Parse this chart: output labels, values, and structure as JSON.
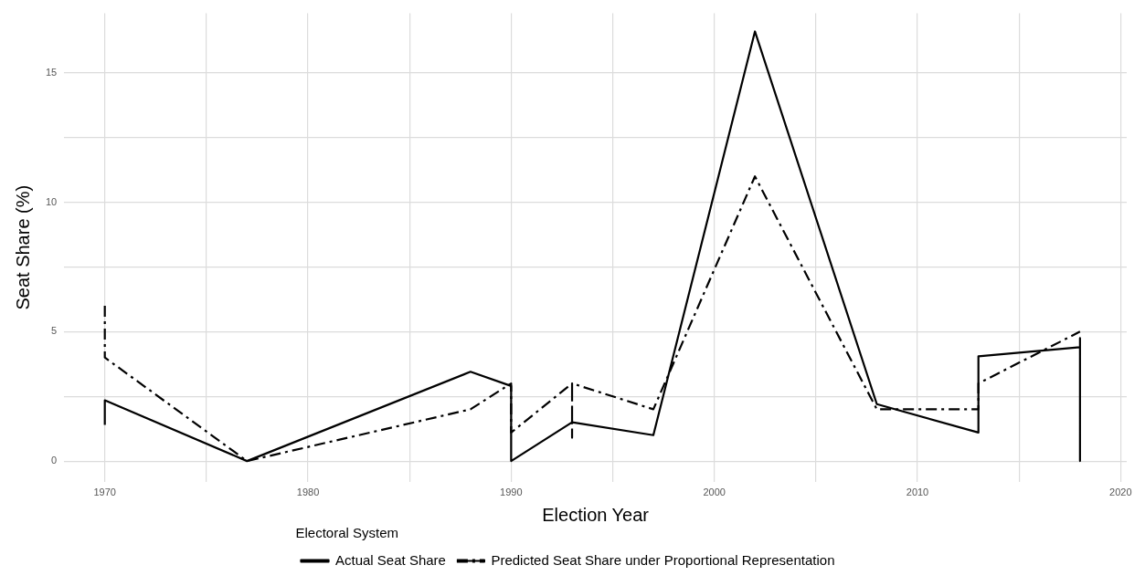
{
  "chart_data": {
    "type": "line",
    "xlabel": "Election Year",
    "ylabel": "Seat Share (%)",
    "legend_title": "Electoral System",
    "legend": "bottom",
    "grid": true,
    "marker": "none",
    "xlim": [
      1968,
      2020.3
    ],
    "ylim": [
      -0.8,
      17.3
    ],
    "xticks": [
      1970,
      {
        "value": 1975,
        "label": null
      },
      1980,
      {
        "value": 1985,
        "label": null
      },
      1990,
      {
        "value": 1995,
        "label": null
      },
      2000,
      {
        "value": 2005,
        "label": null
      },
      2010,
      {
        "value": 2015,
        "label": null
      },
      2020
    ],
    "yticks": [
      0,
      {
        "value": 2.5,
        "label": null
      },
      5,
      {
        "value": 7.5,
        "label": null
      },
      10,
      {
        "value": 12.5,
        "label": null
      },
      15
    ],
    "series": [
      {
        "name": "Actual Seat Share",
        "color": "#000000",
        "line_style": "solid",
        "x": [
          1970,
          1970,
          1977,
          1988,
          1990,
          1990,
          1993,
          1997,
          2002,
          2008,
          2013,
          2013,
          2018,
          2018,
          2018
        ],
        "values": [
          1.4,
          2.35,
          0,
          3.45,
          2.9,
          0,
          1.5,
          1.0,
          16.6,
          2.2,
          1.1,
          4.05,
          4.4,
          4.75,
          0
        ]
      },
      {
        "name": "Predicted Seat Share under Proportional Representation",
        "color": "#000000",
        "line_style": "dashed",
        "x": [
          1970,
          1970,
          1977,
          1988,
          1990,
          1990,
          1993,
          1993,
          1993,
          1997,
          2002,
          2008,
          2013,
          2013,
          2018
        ],
        "values": [
          6,
          4,
          0,
          2,
          3,
          1.1,
          3,
          0.9,
          3,
          2,
          11,
          2,
          2,
          3,
          5
        ]
      }
    ]
  }
}
